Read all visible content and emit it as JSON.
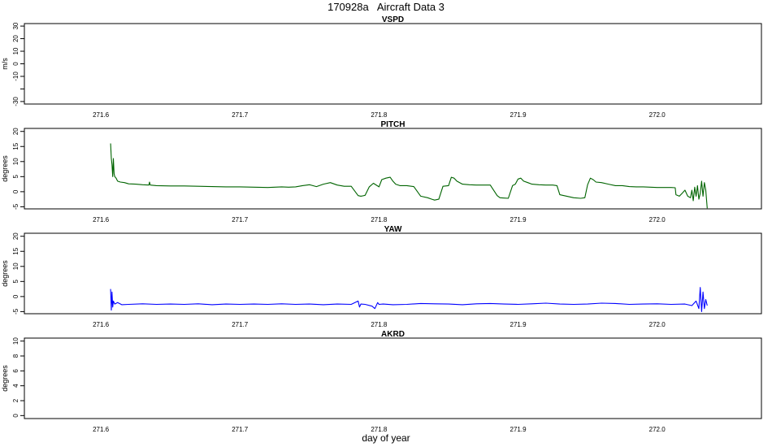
{
  "title": "170928a   Aircraft Data 3",
  "xlabel": "day of year",
  "colors": {
    "frame": "#000000",
    "PITCH": "#006400",
    "YAW": "#0000ff"
  },
  "chart_data": [
    {
      "type": "line",
      "title": "VSPD",
      "ylabel": "m/s",
      "ylim": [
        -32,
        32
      ],
      "yticks": [
        -30,
        -20,
        -10,
        0,
        10,
        20,
        30
      ],
      "ytick_labels": [
        "-30",
        "",
        "-10",
        "0",
        "10",
        "20",
        "30"
      ],
      "xlim": [
        271.545,
        272.075
      ],
      "xticks": [
        271.6,
        271.7,
        271.8,
        271.9,
        272.0
      ],
      "xtick_labels": [
        "271.6",
        "271.7",
        "271.8",
        "271.9",
        "272.0"
      ],
      "series": []
    },
    {
      "type": "line",
      "title": "PITCH",
      "ylabel": "degrees",
      "ylim": [
        -5.7,
        21
      ],
      "yticks": [
        -5,
        0,
        5,
        10,
        15,
        20
      ],
      "ytick_labels": [
        "-5",
        "0",
        "5",
        "10",
        "15",
        "20"
      ],
      "xlim": [
        271.545,
        272.075
      ],
      "xticks": [
        271.6,
        271.7,
        271.8,
        271.9,
        272.0
      ],
      "xtick_labels": [
        "271.6",
        "271.7",
        "271.8",
        "271.9",
        "272.0"
      ],
      "series": [
        {
          "color": "#006400",
          "x": [
            271.607,
            271.6075,
            271.608,
            271.6085,
            271.609,
            271.6095,
            271.61,
            271.611,
            271.612,
            271.614,
            271.617,
            271.62,
            271.625,
            271.63,
            271.6345,
            271.635,
            271.6355,
            271.64,
            271.65,
            271.66,
            271.67,
            271.68,
            271.69,
            271.7,
            271.71,
            271.72,
            271.725,
            271.73,
            271.735,
            271.74,
            271.745,
            271.75,
            271.755,
            271.76,
            271.765,
            271.77,
            271.775,
            271.78,
            271.785,
            271.787,
            271.788,
            271.79,
            271.793,
            271.796,
            271.8,
            271.802,
            271.805,
            271.808,
            271.81,
            271.812,
            271.815,
            271.82,
            271.825,
            271.83,
            271.835,
            271.838,
            271.84,
            271.843,
            271.846,
            271.85,
            271.852,
            271.854,
            271.856,
            271.86,
            271.865,
            271.87,
            271.875,
            271.88,
            271.885,
            271.887,
            271.89,
            271.893,
            271.896,
            271.898,
            271.9,
            271.902,
            271.904,
            271.907,
            271.91,
            271.915,
            271.92,
            271.925,
            271.928,
            271.93,
            271.935,
            271.94,
            271.945,
            271.948,
            271.95,
            271.952,
            271.954,
            271.956,
            271.96,
            271.965,
            271.97,
            271.975,
            271.98,
            271.985,
            271.99,
            271.995,
            272.0,
            272.005,
            272.01,
            272.013,
            272.0135,
            272.016,
            272.018,
            272.02,
            272.022,
            272.024,
            272.025,
            272.026,
            272.027,
            272.028,
            272.029,
            272.03,
            272.031,
            272.032,
            272.033,
            272.034,
            272.035,
            272.036
          ],
          "y": [
            16,
            11,
            9,
            5,
            11,
            6,
            5,
            4.5,
            3.5,
            3.2,
            3.0,
            2.6,
            2.5,
            2.3,
            2.2,
            3.2,
            2.2,
            2.0,
            1.9,
            1.9,
            1.8,
            1.7,
            1.6,
            1.6,
            1.5,
            1.4,
            1.5,
            1.6,
            1.5,
            1.6,
            2.0,
            2.3,
            1.7,
            2.5,
            3.0,
            2.2,
            1.8,
            1.8,
            -1.3,
            -1.5,
            -1.4,
            -1.2,
            1.6,
            2.8,
            1.6,
            4.0,
            4.5,
            4.8,
            3.5,
            2.5,
            2.0,
            2.0,
            1.7,
            -1.5,
            -2.0,
            -2.5,
            -2.8,
            -2.5,
            1.8,
            2.0,
            4.8,
            4.5,
            3.5,
            2.5,
            2.3,
            2.2,
            2.2,
            2.2,
            -1.3,
            -2.0,
            -2.1,
            -2.2,
            2.0,
            2.5,
            4.2,
            4.5,
            3.5,
            3.0,
            2.5,
            2.3,
            2.2,
            2.2,
            2.0,
            -1.0,
            -1.5,
            -2.0,
            -2.2,
            -2.0,
            2.3,
            4.5,
            4.0,
            3.2,
            3.0,
            2.5,
            2.0,
            2.0,
            1.7,
            1.6,
            1.6,
            1.5,
            1.4,
            1.4,
            1.4,
            1.3,
            -1.0,
            -1.5,
            -0.5,
            0.5,
            -1.5,
            -2.0,
            0.5,
            -3.0,
            1.5,
            -1.5,
            2.0,
            -2.5,
            -0.5,
            3.5,
            -1.5,
            3.0,
            0.5,
            -5.5
          ]
        }
      ]
    },
    {
      "type": "line",
      "title": "YAW",
      "ylabel": "degrees",
      "ylim": [
        -5.7,
        21
      ],
      "yticks": [
        -5,
        0,
        5,
        10,
        15,
        20
      ],
      "ytick_labels": [
        "-5",
        "0",
        "5",
        "10",
        "15",
        "20"
      ],
      "xlim": [
        271.545,
        272.075
      ],
      "xticks": [
        271.6,
        271.7,
        271.8,
        271.9,
        272.0
      ],
      "xtick_labels": [
        "271.6",
        "271.7",
        "271.8",
        "271.9",
        "272.0"
      ],
      "series": [
        {
          "color": "#0000ff",
          "x": [
            271.607,
            271.6075,
            271.608,
            271.6085,
            271.609,
            271.61,
            271.612,
            271.615,
            271.62,
            271.63,
            271.64,
            271.65,
            271.66,
            271.67,
            271.68,
            271.69,
            271.7,
            271.71,
            271.72,
            271.73,
            271.74,
            271.75,
            271.76,
            271.77,
            271.78,
            271.785,
            271.786,
            271.787,
            271.79,
            271.795,
            271.797,
            271.799,
            271.8,
            271.803,
            271.81,
            271.82,
            271.83,
            271.84,
            271.85,
            271.86,
            271.87,
            271.88,
            271.89,
            271.9,
            271.91,
            271.92,
            271.93,
            271.94,
            271.95,
            271.96,
            271.97,
            271.98,
            271.99,
            272.0,
            272.01,
            272.02,
            272.025,
            272.028,
            272.03,
            272.031,
            272.032,
            272.033,
            272.034,
            272.035,
            272.036
          ],
          "y": [
            2.5,
            -4.5,
            1.5,
            -3.5,
            -1.5,
            -2.5,
            -2.0,
            -2.7,
            -2.6,
            -2.4,
            -2.6,
            -2.5,
            -2.6,
            -2.4,
            -2.7,
            -2.5,
            -2.6,
            -2.5,
            -2.6,
            -2.4,
            -2.6,
            -2.5,
            -2.7,
            -2.5,
            -2.6,
            -1.5,
            -3.5,
            -2.5,
            -2.6,
            -3.2,
            -4.0,
            -2.0,
            -2.6,
            -2.5,
            -2.7,
            -2.6,
            -2.3,
            -2.4,
            -2.5,
            -2.7,
            -2.4,
            -2.3,
            -2.5,
            -2.6,
            -2.4,
            -2.2,
            -2.5,
            -2.6,
            -2.5,
            -2.2,
            -2.3,
            -2.6,
            -2.5,
            -2.4,
            -2.6,
            -2.5,
            -3.0,
            -1.5,
            -4.0,
            3.0,
            -5.0,
            1.5,
            -4.0,
            -1.0,
            -3.0
          ]
        }
      ]
    },
    {
      "type": "line",
      "title": "AKRD",
      "ylabel": "degrees",
      "ylim": [
        -0.4,
        10.4
      ],
      "yticks": [
        0,
        2,
        4,
        6,
        8,
        10
      ],
      "ytick_labels": [
        "0",
        "2",
        "4",
        "6",
        "8",
        "10"
      ],
      "xlim": [
        271.545,
        272.075
      ],
      "xticks": [
        271.6,
        271.7,
        271.8,
        271.9,
        272.0
      ],
      "xtick_labels": [
        "271.6",
        "271.7",
        "271.8",
        "271.9",
        "272.0"
      ],
      "series": []
    }
  ]
}
